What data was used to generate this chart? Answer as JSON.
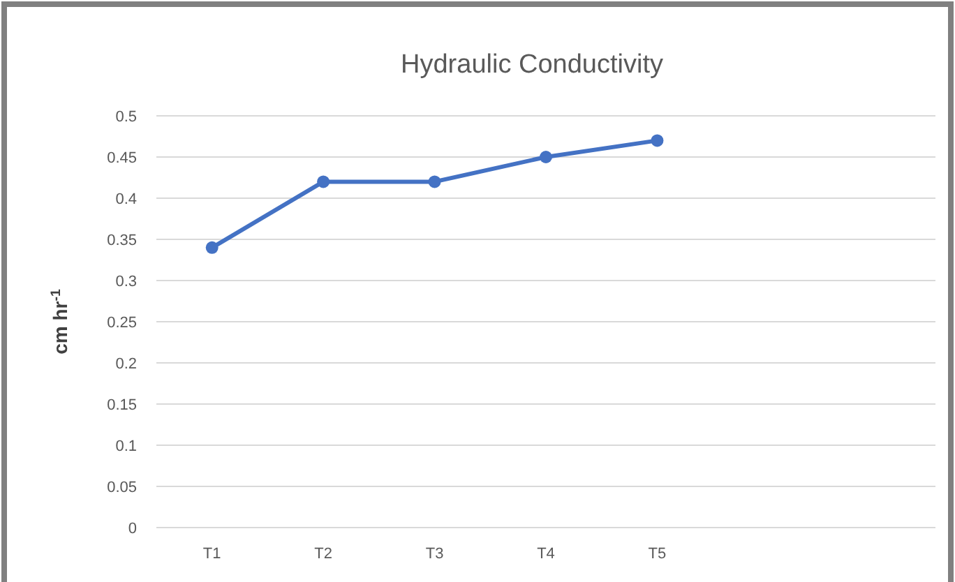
{
  "chart_data": {
    "type": "line",
    "title": "Hydraulic Conductivity",
    "ylabel": "cm hr$^{-1}$",
    "categories": [
      "T1",
      "T2",
      "T3",
      "T4",
      "T5",
      null,
      null
    ],
    "series": [
      {
        "color": "#4472c4",
        "values": [
          0.34,
          0.42,
          0.42,
          0.45,
          0.47,
          null,
          null
        ]
      }
    ],
    "ylim": [
      0,
      0.5
    ],
    "yticks": [
      0,
      0.05,
      0.1,
      0.15,
      0.2,
      0.25,
      0.3,
      0.35,
      0.4,
      0.45,
      0.5
    ],
    "grid": "y",
    "marker": "circle",
    "line_style": "solid"
  }
}
